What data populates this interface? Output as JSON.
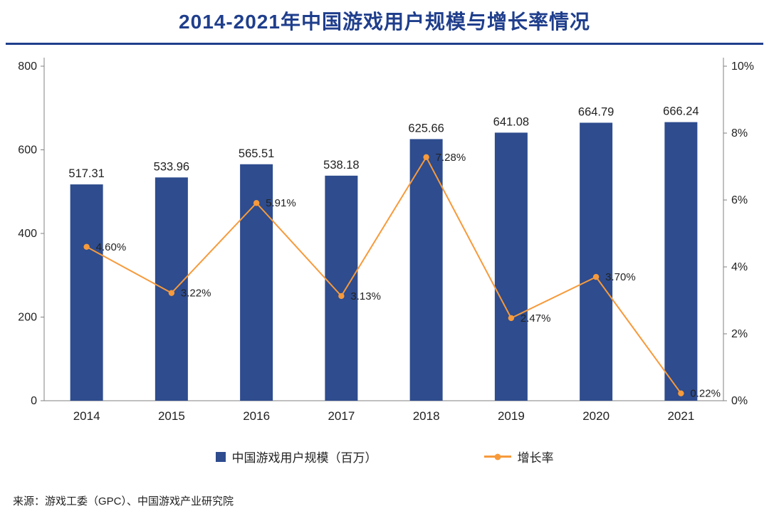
{
  "title": "2014-2021年中国游戏用户规模与增长率情况",
  "legend": {
    "bars": "中国游戏用户规模（百万）",
    "line": "增长率"
  },
  "source": "来源：游戏工委（GPC）、中国游戏产业研究院",
  "colors": {
    "title": "#1F3E8C",
    "divider": "#1F3E8C",
    "bar": "#2E4C8E",
    "line": "#F79A3B",
    "axis": "#808080",
    "text": "#222222"
  },
  "chart_data": {
    "type": "bar",
    "combo": "bar+line",
    "title": "2014-2021年中国游戏用户规模与增长率情况",
    "categories": [
      "2014",
      "2015",
      "2016",
      "2017",
      "2018",
      "2019",
      "2020",
      "2021"
    ],
    "series": [
      {
        "name": "中国游戏用户规模（百万）",
        "type": "bar",
        "axis": "left",
        "values": [
          517.31,
          533.96,
          565.51,
          538.18,
          625.66,
          641.08,
          664.79,
          666.24
        ],
        "labels": [
          "517.31",
          "533.96",
          "565.51",
          "538.18",
          "625.66",
          "641.08",
          "664.79",
          "666.24"
        ]
      },
      {
        "name": "增长率",
        "type": "line",
        "axis": "right",
        "values": [
          4.6,
          3.22,
          5.91,
          3.13,
          7.28,
          2.47,
          3.7,
          0.22
        ],
        "labels": [
          "4.60%",
          "3.22%",
          "5.91%",
          "3.13%",
          "7.28%",
          "2.47%",
          "3.70%",
          "0.22%"
        ]
      }
    ],
    "left_axis": {
      "min": 0,
      "max": 800,
      "ticks": [
        0,
        200,
        400,
        600,
        800
      ],
      "tick_labels": [
        "0",
        "200",
        "400",
        "600",
        "800"
      ]
    },
    "right_axis": {
      "min": 0,
      "max": 10,
      "ticks": [
        0,
        2,
        4,
        6,
        8,
        10
      ],
      "tick_labels": [
        "0%",
        "2%",
        "4%",
        "6%",
        "8%",
        "10%"
      ]
    },
    "grid": false,
    "legend_position": "bottom"
  }
}
